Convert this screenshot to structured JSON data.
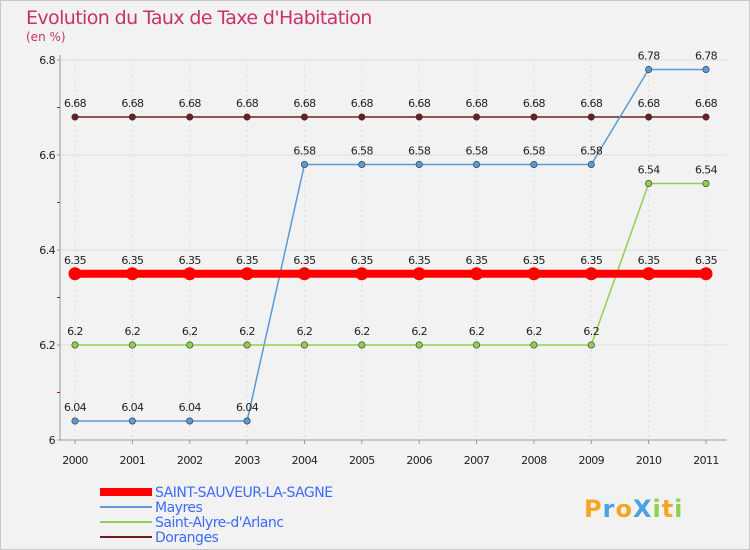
{
  "chart_data": {
    "type": "line",
    "title": "Evolution du Taux de Taxe d'Habitation",
    "subtitle": "(en %)",
    "xlabel": "",
    "ylabel": "",
    "categories": [
      "2000",
      "2001",
      "2002",
      "2003",
      "2004",
      "2005",
      "2006",
      "2007",
      "2008",
      "2009",
      "2010",
      "2011"
    ],
    "ylim": [
      6,
      6.8
    ],
    "yticks": [
      6,
      6.2,
      6.4,
      6.6,
      6.8
    ],
    "ytick_labels": [
      "6",
      "6.2",
      "6.4",
      "6.6",
      "6.8"
    ],
    "legend_position": "bottom-left",
    "series": [
      {
        "name": "Doranges",
        "color": "#6b1f1f",
        "values": [
          6.68,
          6.68,
          6.68,
          6.68,
          6.68,
          6.68,
          6.68,
          6.68,
          6.68,
          6.68,
          6.68,
          6.68
        ],
        "labels": [
          "6.68",
          "6.68",
          "6.68",
          "6.68",
          "6.68",
          "6.68",
          "6.68",
          "6.68",
          "6.68",
          "6.68",
          "6.68",
          "6.68"
        ]
      },
      {
        "name": "Mayres",
        "color": "#5b9bd5",
        "values": [
          6.04,
          6.04,
          6.04,
          6.04,
          6.58,
          6.58,
          6.58,
          6.58,
          6.58,
          6.58,
          6.78,
          6.78
        ],
        "labels": [
          "6.04",
          "6.04",
          "6.04",
          "6.04",
          "6.58",
          "6.58",
          "6.58",
          "6.58",
          "6.58",
          "6.58",
          "6.78",
          "6.78"
        ]
      },
      {
        "name": "Saint-Alyre-d'Arlanc",
        "color": "#8fd14f",
        "values": [
          6.2,
          6.2,
          6.2,
          6.2,
          6.2,
          6.2,
          6.2,
          6.2,
          6.2,
          6.2,
          6.54,
          6.54
        ],
        "labels": [
          "6.2",
          "6.2",
          "6.2",
          "6.2",
          "6.2",
          "6.2",
          "6.2",
          "6.2",
          "6.2",
          "6.2",
          "6.54",
          "6.54"
        ]
      },
      {
        "name": "SAINT-SAUVEUR-LA-SAGNE",
        "color": "#ff0000",
        "values": [
          6.35,
          6.35,
          6.35,
          6.35,
          6.35,
          6.35,
          6.35,
          6.35,
          6.35,
          6.35,
          6.35,
          6.35
        ],
        "labels": [
          "6.35",
          "6.35",
          "6.35",
          "6.35",
          "6.35",
          "6.35",
          "6.35",
          "6.35",
          "6.35",
          "6.35",
          "6.35",
          "6.35"
        ]
      }
    ],
    "legend": [
      "SAINT-SAUVEUR-LA-SAGNE",
      "Mayres",
      "Saint-Alyre-d'Arlanc",
      "Doranges"
    ]
  },
  "colors": {
    "title": "#c8306e",
    "legend_text": "#3a6bff",
    "grid": "#dddddd",
    "axis": "#999999"
  },
  "logo": {
    "text": "ProXiti"
  }
}
